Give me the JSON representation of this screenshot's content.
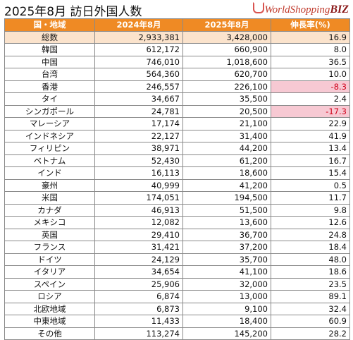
{
  "header": {
    "title": "2025年8月 訪日外国人数",
    "logo_text": "WorldShopping",
    "logo_suffix": "BIZ"
  },
  "table": {
    "columns": [
      "国・地域",
      "2024年8月",
      "2025年8月",
      "伸長率(%)"
    ],
    "rows": [
      {
        "name": "総数",
        "y2024": "2,933,381",
        "y2025": "3,428,000",
        "growth": "16.9"
      },
      {
        "name": "韓国",
        "y2024": "612,172",
        "y2025": "660,900",
        "growth": "8.0"
      },
      {
        "name": "中国",
        "y2024": "746,010",
        "y2025": "1,018,600",
        "growth": "36.5"
      },
      {
        "name": "台湾",
        "y2024": "564,360",
        "y2025": "620,700",
        "growth": "10.0"
      },
      {
        "name": "香港",
        "y2024": "246,557",
        "y2025": "226,100",
        "growth": "-8.3"
      },
      {
        "name": "タイ",
        "y2024": "34,667",
        "y2025": "35,500",
        "growth": "2.4"
      },
      {
        "name": "シンガポール",
        "y2024": "24,781",
        "y2025": "20,500",
        "growth": "-17.3"
      },
      {
        "name": "マレーシア",
        "y2024": "17,174",
        "y2025": "21,100",
        "growth": "22.9"
      },
      {
        "name": "インドネシア",
        "y2024": "22,127",
        "y2025": "31,400",
        "growth": "41.9"
      },
      {
        "name": "フィリピン",
        "y2024": "38,971",
        "y2025": "44,200",
        "growth": "13.4"
      },
      {
        "name": "ベトナム",
        "y2024": "52,430",
        "y2025": "61,200",
        "growth": "16.7"
      },
      {
        "name": "インド",
        "y2024": "16,113",
        "y2025": "18,600",
        "growth": "15.4"
      },
      {
        "name": "豪州",
        "y2024": "40,999",
        "y2025": "41,200",
        "growth": "0.5"
      },
      {
        "name": "米国",
        "y2024": "174,051",
        "y2025": "194,500",
        "growth": "11.7"
      },
      {
        "name": "カナダ",
        "y2024": "46,913",
        "y2025": "51,500",
        "growth": "9.8"
      },
      {
        "name": "メキシコ",
        "y2024": "12,082",
        "y2025": "13,600",
        "growth": "12.6"
      },
      {
        "name": "英国",
        "y2024": "29,410",
        "y2025": "36,700",
        "growth": "24.8"
      },
      {
        "name": "フランス",
        "y2024": "31,421",
        "y2025": "37,200",
        "growth": "18.4"
      },
      {
        "name": "ドイツ",
        "y2024": "24,129",
        "y2025": "35,700",
        "growth": "48.0"
      },
      {
        "name": "イタリア",
        "y2024": "34,654",
        "y2025": "41,100",
        "growth": "18.6"
      },
      {
        "name": "スペイン",
        "y2024": "25,906",
        "y2025": "32,000",
        "growth": "23.5"
      },
      {
        "name": "ロシア",
        "y2024": "6,874",
        "y2025": "13,000",
        "growth": "89.1"
      },
      {
        "name": "北欧地域",
        "y2024": "6,873",
        "y2025": "9,100",
        "growth": "32.4"
      },
      {
        "name": "中東地域",
        "y2024": "11,433",
        "y2025": "18,400",
        "growth": "60.9"
      },
      {
        "name": "その他",
        "y2024": "113,274",
        "y2025": "145,200",
        "growth": "28.2"
      }
    ]
  },
  "colors": {
    "header_bg": "#ef8a24",
    "total_row_bg": "#fbe3cc",
    "negative_bg": "#f7c9d3",
    "negative_text": "#d0021b"
  }
}
